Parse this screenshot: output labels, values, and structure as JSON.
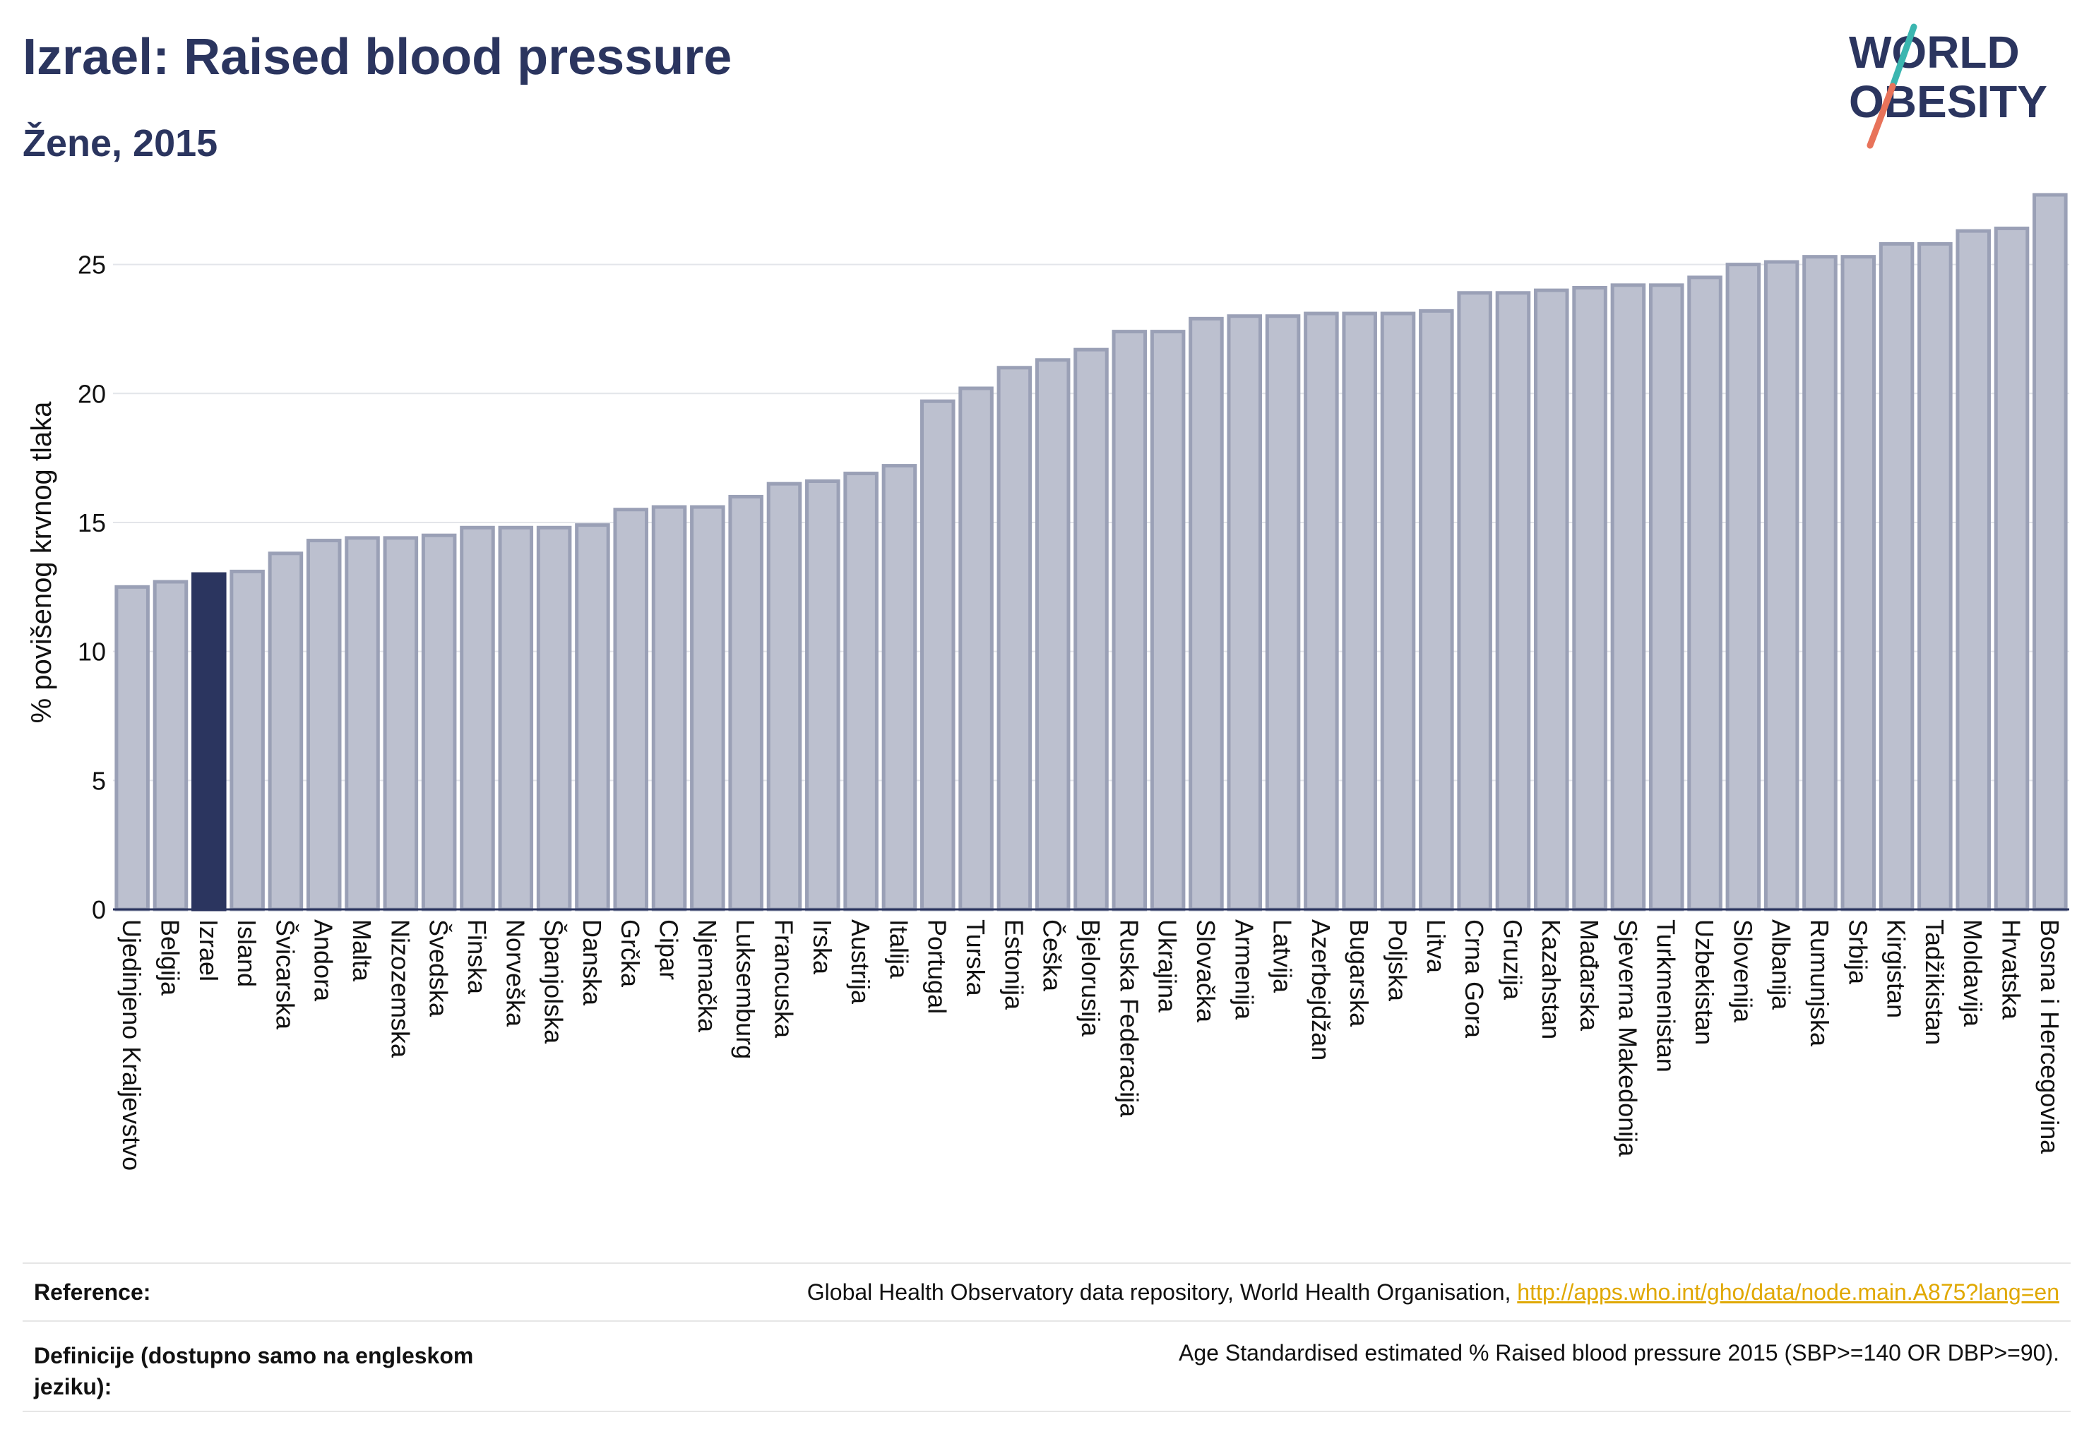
{
  "header": {
    "title": "Izrael: Raised blood pressure",
    "subtitle": "Žene, 2015"
  },
  "logo": {
    "line1": "WORLD",
    "line2": "OBESITY",
    "accent_teal": "#3bb6b0",
    "accent_coral": "#e8735a"
  },
  "colors": {
    "bar": "#bcc0cf",
    "bar_edge": "#9aa0b6",
    "highlight": "#2b355f",
    "grid": "#e3e5ea"
  },
  "chart_data": {
    "type": "bar",
    "ylabel": "% povišenog krvnog tlaka",
    "ylim": [
      0,
      28
    ],
    "yticks": [
      0,
      5,
      10,
      15,
      20,
      25
    ],
    "highlight": "Izrael",
    "categories": [
      "Ujedinjeno Kraljevstvo",
      "Belgija",
      "Izrael",
      "Island",
      "Švicarska",
      "Andora",
      "Malta",
      "Nizozemska",
      "Švedska",
      "Finska",
      "Norveška",
      "Španjolska",
      "Danska",
      "Grčka",
      "Cipar",
      "Njemačka",
      "Luksemburg",
      "Francuska",
      "Irska",
      "Austrija",
      "Italija",
      "Portugal",
      "Turska",
      "Estonija",
      "Češka",
      "Bjelorusija",
      "Ruska Federacija",
      "Ukrajina",
      "Slovačka",
      "Armenija",
      "Latvija",
      "Azerbejdžan",
      "Bugarska",
      "Poljska",
      "Litva",
      "Crna Gora",
      "Gruzija",
      "Kazahstan",
      "Mađarska",
      "Sjeverna Makedonija",
      "Turkmenistan",
      "Uzbekistan",
      "Slovenija",
      "Albanija",
      "Rumunjska",
      "Srbija",
      "Kirgistan",
      "Tadžikistan",
      "Moldavija",
      "Hrvatska",
      "Bosna i Hercegovina"
    ],
    "values": [
      12.5,
      12.7,
      13.0,
      13.1,
      13.8,
      14.3,
      14.4,
      14.4,
      14.5,
      14.8,
      14.8,
      14.8,
      14.9,
      15.5,
      15.6,
      15.6,
      16.0,
      16.5,
      16.6,
      16.9,
      17.2,
      19.7,
      20.2,
      21.0,
      21.3,
      21.7,
      22.4,
      22.4,
      22.9,
      23.0,
      23.0,
      23.1,
      23.1,
      23.1,
      23.2,
      23.9,
      23.9,
      24.0,
      24.1,
      24.2,
      24.2,
      24.5,
      25.0,
      25.1,
      25.3,
      25.3,
      25.8,
      25.8,
      26.3,
      26.4,
      27.7
    ]
  },
  "footer": {
    "reference_label": "Reference:",
    "reference_text": "Global Health Observatory data repository, World Health Organisation, ",
    "reference_link": "http://apps.who.int/gho/data/node.main.A875?lang=en",
    "definition_label": "Definicije (dostupno samo na engleskom jeziku):",
    "definition_text": "Age Standardised estimated % Raised blood pressure 2015 (SBP>=140 OR DBP>=90)."
  }
}
